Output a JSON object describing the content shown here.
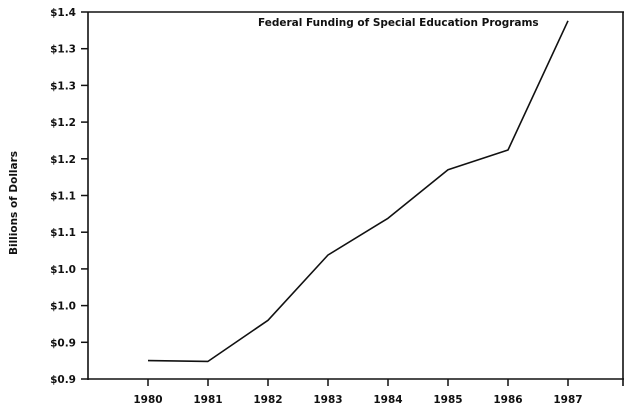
{
  "chart_data": {
    "type": "line",
    "title": "Federal Funding of Special Education Programs",
    "xlabel": "",
    "ylabel": "Billions of Dollars",
    "categories": [
      "1980",
      "1981",
      "1982",
      "1983",
      "1984",
      "1985",
      "1986",
      "1987"
    ],
    "series": [
      {
        "name": "Federal Funding",
        "values": [
          0.925,
          0.924,
          0.98,
          1.069,
          1.119,
          1.185,
          1.212,
          1.388
        ]
      }
    ],
    "ylim": [
      0.9,
      1.4
    ],
    "yticks": [
      1.4,
      1.35,
      1.3,
      1.25,
      1.2,
      1.15,
      1.1,
      1.05,
      1.0,
      0.95,
      0.9
    ],
    "ytick_labels": [
      "$1.4",
      "$1.3",
      "$1.3",
      "$1.2",
      "$1.2",
      "$1.1",
      "$1.1",
      "$1.0",
      "$1.0",
      "$0.9",
      "$0.9"
    ],
    "grid": false,
    "legend": "none"
  }
}
